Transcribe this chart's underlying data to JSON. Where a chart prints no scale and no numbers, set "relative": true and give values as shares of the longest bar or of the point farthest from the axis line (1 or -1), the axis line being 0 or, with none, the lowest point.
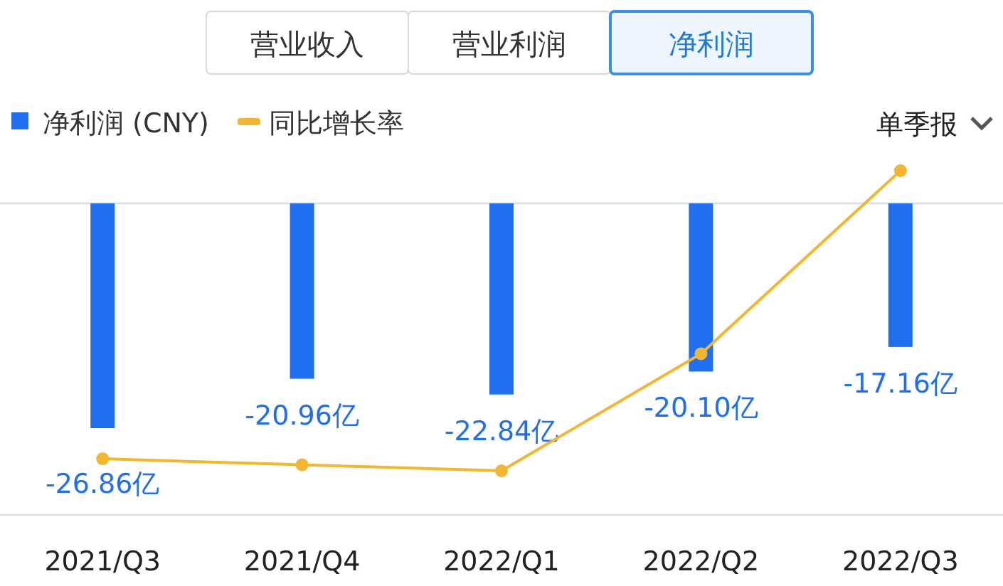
{
  "chart_data": [
    {
      "type": "bar",
      "categories": [
        "2021/Q3",
        "2021/Q4",
        "2022/Q1",
        "2022/Q2",
        "2022/Q3"
      ],
      "series": [
        {
          "name": "净利润 (CNY)",
          "color": "#1f6ff0",
          "values": [
            -26.86,
            -20.96,
            -22.84,
            -20.1,
            -17.16
          ],
          "value_labels": [
            "-26.86亿",
            "-20.96亿",
            "-22.84亿",
            "-20.10亿",
            "-17.16亿"
          ]
        }
      ],
      "legend": "top left",
      "annotations": [
        "营业收入",
        "营业利润",
        "净利润",
        "单季报"
      ]
    },
    {
      "type": "line",
      "categories": [
        null,
        null,
        null,
        null,
        null
      ],
      "series": [
        {
          "name": "同比增长率",
          "color": "#f2b631",
          "marker": "circle",
          "values": [
            0.04,
            0.02,
            0,
            0.39,
            1
          ]
        }
      ],
      "relative": true,
      "legend": "top left"
    }
  ]
}
